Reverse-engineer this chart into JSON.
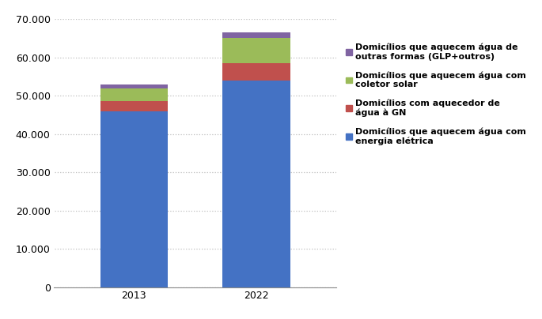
{
  "years": [
    "2013",
    "2022"
  ],
  "series": [
    {
      "label": "Domicílios que aquecem água com\nenergia elétrica",
      "color": "#4472C4",
      "values": [
        46000,
        54000
      ]
    },
    {
      "label": "Domicílios com aquecedor de\nágua à GN",
      "color": "#C0504D",
      "values": [
        2500,
        4500
      ]
    },
    {
      "label": "Domicílios que aquecem água com\ncoletor solar",
      "color": "#9BBB59",
      "values": [
        3500,
        6500
      ]
    },
    {
      "label": "Domicílios que aquecem água de\noutras formas (GLP+outros)",
      "color": "#8064A2",
      "values": [
        1000,
        1500
      ]
    }
  ],
  "ylim": [
    0,
    70000
  ],
  "yticks": [
    0,
    10000,
    20000,
    30000,
    40000,
    50000,
    60000,
    70000
  ],
  "grid_color": "#C0C0C0",
  "background_color": "#FFFFFF",
  "bar_width": 0.55,
  "legend_fontsize": 8.0,
  "tick_fontsize": 9.0
}
